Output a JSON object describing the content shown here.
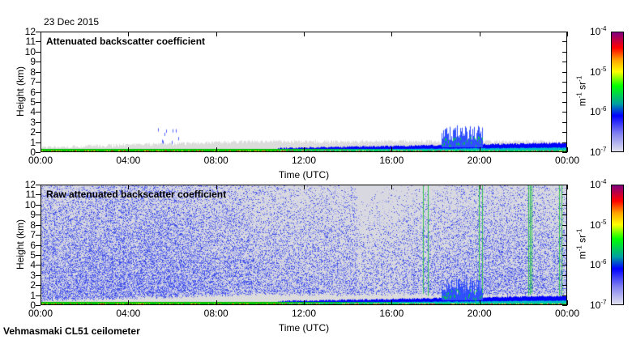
{
  "date": "23 Dec 2015",
  "footer": "Vehmasmaki CL51 ceilometer",
  "chart_data": [
    {
      "type": "heatmap",
      "title": "Attenuated backscatter coefficient",
      "xlabel": "Time (UTC)",
      "ylabel": "Height (km)",
      "x_ticks": [
        "00:00",
        "04:00",
        "08:00",
        "12:00",
        "16:00",
        "20:00",
        "00:00"
      ],
      "y_ticks": [
        "0",
        "1",
        "2",
        "3",
        "4",
        "5",
        "6",
        "7",
        "8",
        "9",
        "10",
        "11",
        "12"
      ],
      "ylim": [
        0,
        12
      ],
      "colorbar": {
        "label": "m-1 sr-1",
        "ticks": [
          "10-7",
          "10-6",
          "10-5",
          "10-4"
        ],
        "scale": "log",
        "range": [
          1e-07,
          0.0001
        ]
      },
      "features": [
        {
          "desc": "cloud",
          "time_range": [
            "18:00",
            "21:00"
          ],
          "height_range": [
            0.5,
            3
          ]
        },
        {
          "desc": "aerosol",
          "time_range": [
            "05:30",
            "06:30"
          ],
          "height_range": [
            1,
            3
          ]
        }
      ]
    },
    {
      "type": "heatmap",
      "title": "Raw attenuated backscatter coefficient",
      "xlabel": "Time (UTC)",
      "ylabel": "Height (km)",
      "x_ticks": [
        "00:00",
        "04:00",
        "08:00",
        "12:00",
        "16:00",
        "20:00",
        "00:00"
      ],
      "y_ticks": [
        "0",
        "1",
        "2",
        "3",
        "4",
        "5",
        "6",
        "7",
        "8",
        "9",
        "10",
        "11",
        "12"
      ],
      "ylim": [
        0,
        12
      ],
      "colorbar": {
        "label": "m-1 sr-1",
        "ticks": [
          "10-7",
          "10-6",
          "10-5",
          "10-4"
        ],
        "scale": "log",
        "range": [
          1e-07,
          0.0001
        ]
      }
    }
  ],
  "unit_m": "m",
  "unit_sr": "sr",
  "exp_neg1": "-1",
  "cb_base": "10",
  "cb_exps": [
    "-7",
    "-6",
    "-5",
    "-4"
  ]
}
